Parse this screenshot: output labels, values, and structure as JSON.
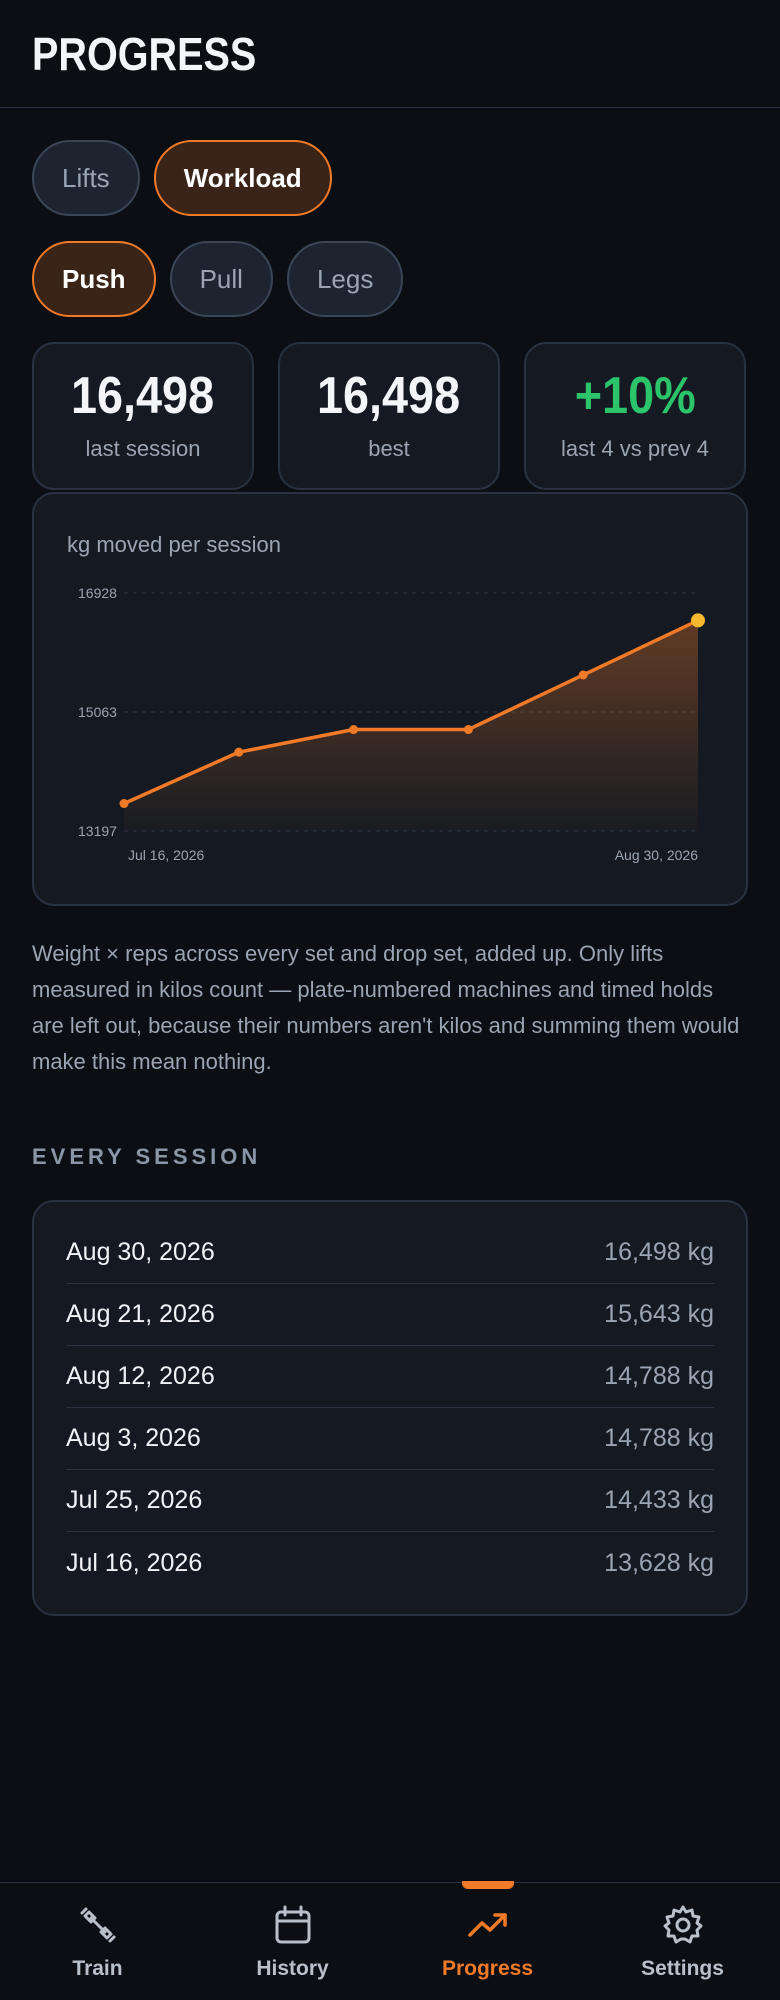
{
  "header": {
    "title": "PROGRESS"
  },
  "view_tabs": [
    {
      "label": "Lifts",
      "active": false
    },
    {
      "label": "Workload",
      "active": true
    }
  ],
  "group_tabs": [
    {
      "label": "Push",
      "active": true
    },
    {
      "label": "Pull",
      "active": false
    },
    {
      "label": "Legs",
      "active": false
    }
  ],
  "stats": [
    {
      "value": "16,498",
      "label": "last session",
      "accent": "#f3f5f8"
    },
    {
      "value": "16,498",
      "label": "best",
      "accent": "#f3f5f8"
    },
    {
      "value": "+10%",
      "label": "last 4 vs prev 4",
      "accent": "#2cc46a"
    }
  ],
  "chart_caption": "kg moved per session",
  "chart_data": {
    "type": "area",
    "title": "",
    "x": [
      "Jul 16, 2026",
      "Jul 25, 2026",
      "Aug 3, 2026",
      "Aug 12, 2026",
      "Aug 21, 2026",
      "Aug 30, 2026"
    ],
    "series": [
      {
        "values": [
          13628,
          14433,
          14788,
          14788,
          15643,
          16498
        ]
      }
    ],
    "ylim": [
      13197,
      16928
    ],
    "y_ticks": [
      "16928",
      "15063",
      "13197"
    ],
    "x_tick_labels": [
      "Jul 16, 2026",
      "Aug 30, 2026"
    ],
    "grid": true,
    "line_color": "#f07a28",
    "highlight_color": "#f5b82e"
  },
  "description": "Weight × reps across every set and drop set, added up. Only lifts measured in kilos count — plate-numbered machines and timed holds are left out, because their numbers aren't kilos and summing them would make this mean nothing.",
  "sessions_title": "EVERY SESSION",
  "sessions": [
    {
      "date": "Aug 30, 2026",
      "value": "16,498 kg"
    },
    {
      "date": "Aug 21, 2026",
      "value": "15,643 kg"
    },
    {
      "date": "Aug 12, 2026",
      "value": "14,788 kg"
    },
    {
      "date": "Aug 3, 2026",
      "value": "14,788 kg"
    },
    {
      "date": "Jul 25, 2026",
      "value": "14,433 kg"
    },
    {
      "date": "Jul 16, 2026",
      "value": "13,628 kg"
    }
  ],
  "nav": [
    {
      "label": "Train",
      "icon": "dumbbell-icon",
      "active": false
    },
    {
      "label": "History",
      "icon": "calendar-icon",
      "active": false
    },
    {
      "label": "Progress",
      "icon": "trending-up-icon",
      "active": true
    },
    {
      "label": "Settings",
      "icon": "gear-icon",
      "active": false
    }
  ],
  "colors": {
    "accent": "#f07a28",
    "positive": "#2cc46a",
    "background": "#0b0e13"
  }
}
